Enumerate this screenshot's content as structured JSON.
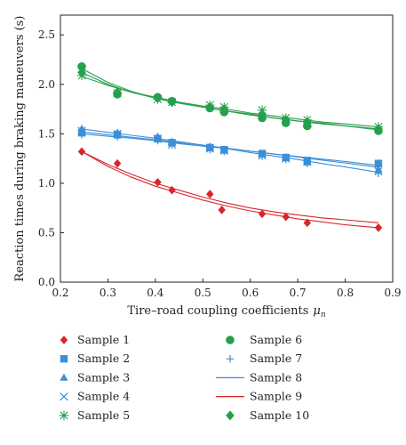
{
  "chart_data": {
    "type": "scatter",
    "title": "",
    "xlabel": "Tire–road coupling coefficients",
    "xlabel_symbol": "μ",
    "xlabel_subscript": "n",
    "ylabel": "Reaction times during braking maneuvers (s)",
    "xlim": [
      0.2,
      0.9
    ],
    "ylim": [
      0.0,
      2.7
    ],
    "xticks": [
      "0.2",
      "0.3",
      "0.4",
      "0.5",
      "0.6",
      "0.7",
      "0.8",
      "0.9"
    ],
    "yticks": [
      "0.0",
      "0.5",
      "1.0",
      "1.5",
      "2.0",
      "2.5"
    ],
    "grid": false,
    "legend_position": "bottom",
    "colors": {
      "red": "#d7262b",
      "blue": "#3b8fd8",
      "green": "#26a04d",
      "axis": "#231f20"
    },
    "series": [
      {
        "name": "Sample 1",
        "marker": "diamond",
        "color": "#d7262b",
        "points": [
          [
            0.245,
            1.32
          ],
          [
            0.32,
            1.2
          ],
          [
            0.405,
            1.01
          ],
          [
            0.435,
            0.93
          ],
          [
            0.515,
            0.89
          ],
          [
            0.54,
            0.73
          ],
          [
            0.625,
            0.69
          ],
          [
            0.675,
            0.66
          ],
          [
            0.72,
            0.6
          ],
          [
            0.87,
            0.55
          ]
        ]
      },
      {
        "name": "Sample 2",
        "marker": "square",
        "color": "#3b8fd8",
        "points": [
          [
            0.245,
            1.51
          ],
          [
            0.32,
            1.49
          ],
          [
            0.405,
            1.45
          ],
          [
            0.435,
            1.41
          ],
          [
            0.515,
            1.36
          ],
          [
            0.545,
            1.34
          ],
          [
            0.625,
            1.3
          ],
          [
            0.675,
            1.26
          ],
          [
            0.72,
            1.23
          ],
          [
            0.87,
            1.2
          ]
        ]
      },
      {
        "name": "Sample 3",
        "marker": "triangle",
        "color": "#3b8fd8",
        "points": [
          [
            0.245,
            1.55
          ],
          [
            0.32,
            1.51
          ],
          [
            0.405,
            1.47
          ],
          [
            0.435,
            1.42
          ],
          [
            0.515,
            1.37
          ],
          [
            0.545,
            1.33
          ],
          [
            0.625,
            1.29
          ],
          [
            0.675,
            1.26
          ],
          [
            0.72,
            1.21
          ],
          [
            0.87,
            1.14
          ]
        ]
      },
      {
        "name": "Sample 4",
        "marker": "x",
        "color": "#3b8fd8",
        "points": [
          [
            0.245,
            1.53
          ],
          [
            0.32,
            1.5
          ],
          [
            0.405,
            1.45
          ],
          [
            0.435,
            1.39
          ],
          [
            0.515,
            1.35
          ],
          [
            0.545,
            1.33
          ],
          [
            0.625,
            1.28
          ],
          [
            0.675,
            1.25
          ],
          [
            0.72,
            1.22
          ],
          [
            0.87,
            1.12
          ]
        ]
      },
      {
        "name": "Sample 5",
        "marker": "asterisk",
        "color": "#26a04d",
        "points": [
          [
            0.245,
            2.09
          ],
          [
            0.32,
            1.91
          ],
          [
            0.405,
            1.85
          ],
          [
            0.435,
            1.82
          ],
          [
            0.515,
            1.79
          ],
          [
            0.545,
            1.77
          ],
          [
            0.625,
            1.74
          ],
          [
            0.675,
            1.66
          ],
          [
            0.72,
            1.64
          ],
          [
            0.87,
            1.57
          ]
        ]
      },
      {
        "name": "Sample 6",
        "marker": "circle",
        "color": "#26a04d",
        "points": [
          [
            0.245,
            2.18
          ],
          [
            0.32,
            1.9
          ],
          [
            0.405,
            1.87
          ],
          [
            0.435,
            1.83
          ],
          [
            0.515,
            1.76
          ],
          [
            0.545,
            1.72
          ],
          [
            0.625,
            1.66
          ],
          [
            0.675,
            1.61
          ],
          [
            0.72,
            1.58
          ],
          [
            0.87,
            1.53
          ]
        ]
      },
      {
        "name": "Sample 7",
        "marker": "plus",
        "color": "#3b8fd8",
        "points": [
          [
            0.245,
            1.49
          ],
          [
            0.32,
            1.47
          ],
          [
            0.405,
            1.43
          ],
          [
            0.435,
            1.39
          ],
          [
            0.515,
            1.34
          ],
          [
            0.545,
            1.32
          ],
          [
            0.625,
            1.27
          ],
          [
            0.675,
            1.24
          ],
          [
            0.72,
            1.2
          ],
          [
            0.87,
            1.1
          ]
        ]
      },
      {
        "name": "Sample 8",
        "marker": "line",
        "color": "#3b8fd8",
        "points": [
          [
            0.245,
            1.52
          ],
          [
            0.3,
            1.49
          ],
          [
            0.35,
            1.465
          ],
          [
            0.4,
            1.44
          ],
          [
            0.45,
            1.41
          ],
          [
            0.5,
            1.385
          ],
          [
            0.55,
            1.355
          ],
          [
            0.6,
            1.325
          ],
          [
            0.65,
            1.295
          ],
          [
            0.7,
            1.265
          ],
          [
            0.75,
            1.235
          ],
          [
            0.8,
            1.205
          ],
          [
            0.87,
            1.16
          ]
        ]
      },
      {
        "name": "Sample 9",
        "marker": "line",
        "color": "#d7262b",
        "points": [
          [
            0.245,
            1.32
          ],
          [
            0.3,
            1.19
          ],
          [
            0.35,
            1.09
          ],
          [
            0.4,
            1.0
          ],
          [
            0.45,
            0.93
          ],
          [
            0.5,
            0.86
          ],
          [
            0.55,
            0.8
          ],
          [
            0.6,
            0.75
          ],
          [
            0.65,
            0.71
          ],
          [
            0.7,
            0.68
          ],
          [
            0.75,
            0.65
          ],
          [
            0.8,
            0.63
          ],
          [
            0.87,
            0.6
          ]
        ]
      },
      {
        "name": "Sample 10",
        "marker": "diamond",
        "color": "#26a04d",
        "points": [
          [
            0.245,
            2.12
          ],
          [
            0.32,
            1.92
          ],
          [
            0.405,
            1.86
          ],
          [
            0.435,
            1.82
          ],
          [
            0.515,
            1.77
          ],
          [
            0.545,
            1.75
          ],
          [
            0.625,
            1.7
          ],
          [
            0.675,
            1.64
          ],
          [
            0.72,
            1.62
          ],
          [
            0.87,
            1.55
          ]
        ]
      }
    ],
    "fit_lines": [
      {
        "color": "#3b8fd8",
        "points": [
          [
            0.245,
            1.55
          ],
          [
            0.3,
            1.515
          ],
          [
            0.35,
            1.485
          ],
          [
            0.4,
            1.455
          ],
          [
            0.45,
            1.42
          ],
          [
            0.5,
            1.385
          ],
          [
            0.55,
            1.35
          ],
          [
            0.6,
            1.31
          ],
          [
            0.65,
            1.275
          ],
          [
            0.7,
            1.24
          ],
          [
            0.75,
            1.2
          ],
          [
            0.8,
            1.165
          ],
          [
            0.87,
            1.11
          ]
        ]
      },
      {
        "color": "#3b8fd8",
        "points": [
          [
            0.245,
            1.5
          ],
          [
            0.3,
            1.475
          ],
          [
            0.35,
            1.455
          ],
          [
            0.4,
            1.43
          ],
          [
            0.45,
            1.4
          ],
          [
            0.5,
            1.375
          ],
          [
            0.55,
            1.35
          ],
          [
            0.6,
            1.325
          ],
          [
            0.65,
            1.295
          ],
          [
            0.7,
            1.27
          ],
          [
            0.75,
            1.245
          ],
          [
            0.8,
            1.22
          ],
          [
            0.87,
            1.18
          ]
        ]
      },
      {
        "color": "#d7262b",
        "points": [
          [
            0.245,
            1.32
          ],
          [
            0.3,
            1.17
          ],
          [
            0.35,
            1.06
          ],
          [
            0.4,
            0.97
          ],
          [
            0.45,
            0.9
          ],
          [
            0.5,
            0.83
          ],
          [
            0.55,
            0.77
          ],
          [
            0.6,
            0.72
          ],
          [
            0.65,
            0.68
          ],
          [
            0.7,
            0.64
          ],
          [
            0.75,
            0.61
          ],
          [
            0.8,
            0.58
          ],
          [
            0.87,
            0.55
          ]
        ]
      },
      {
        "color": "#26a04d",
        "points": [
          [
            0.245,
            2.16
          ],
          [
            0.3,
            2.02
          ],
          [
            0.35,
            1.93
          ],
          [
            0.4,
            1.86
          ],
          [
            0.45,
            1.81
          ],
          [
            0.5,
            1.77
          ],
          [
            0.55,
            1.73
          ],
          [
            0.6,
            1.69
          ],
          [
            0.65,
            1.66
          ],
          [
            0.7,
            1.63
          ],
          [
            0.75,
            1.6
          ],
          [
            0.8,
            1.58
          ],
          [
            0.87,
            1.55
          ]
        ]
      },
      {
        "color": "#26a04d",
        "points": [
          [
            0.245,
            2.08
          ],
          [
            0.3,
            1.99
          ],
          [
            0.35,
            1.92
          ],
          [
            0.4,
            1.87
          ],
          [
            0.45,
            1.82
          ],
          [
            0.5,
            1.78
          ],
          [
            0.55,
            1.75
          ],
          [
            0.6,
            1.71
          ],
          [
            0.65,
            1.68
          ],
          [
            0.7,
            1.65
          ],
          [
            0.75,
            1.62
          ],
          [
            0.8,
            1.6
          ],
          [
            0.87,
            1.57
          ]
        ]
      },
      {
        "color": "#26a04d",
        "points": [
          [
            0.245,
            2.12
          ],
          [
            0.3,
            2.0
          ],
          [
            0.35,
            1.92
          ],
          [
            0.4,
            1.86
          ],
          [
            0.45,
            1.81
          ],
          [
            0.5,
            1.77
          ],
          [
            0.55,
            1.73
          ],
          [
            0.6,
            1.7
          ],
          [
            0.65,
            1.66
          ],
          [
            0.7,
            1.63
          ],
          [
            0.75,
            1.61
          ],
          [
            0.8,
            1.58
          ],
          [
            0.87,
            1.54
          ]
        ]
      }
    ]
  }
}
